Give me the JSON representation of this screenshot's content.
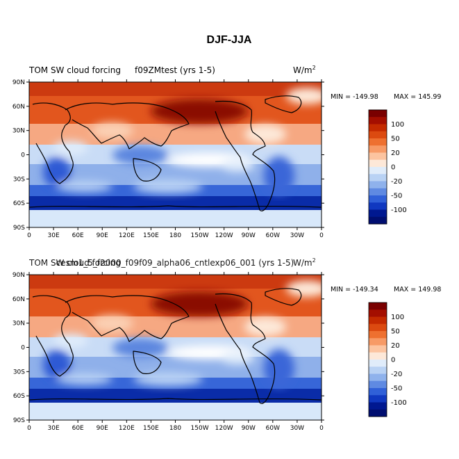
{
  "figure": {
    "title": "DJF-JJA"
  },
  "panels": [
    {
      "left_title": "TOM SW cloud forcing",
      "center_title": "f09ZMtest (yrs 1-5)",
      "units_base": "W/m",
      "units_exp": "2",
      "min_label": "MIN = -149.98",
      "max_label": "MAX = 145.99"
    },
    {
      "left_title": "TOM SW cloud forcing",
      "center_title": "cesm1_5_f2000_f09f09_alpha06_cntlexp06_001 (yrs 1-5)",
      "units_base": "W/m",
      "units_exp": "2",
      "min_label": "MIN = -149.34",
      "max_label": "MAX = 149.98"
    }
  ],
  "lat_ticks": [
    "90N",
    "60N",
    "30N",
    "0",
    "30S",
    "60S",
    "90S"
  ],
  "lon_ticks": [
    "0",
    "30E",
    "60E",
    "90E",
    "120E",
    "150E",
    "180",
    "150W",
    "120W",
    "90W",
    "60W",
    "30W",
    "0"
  ],
  "colorbar": {
    "labels": [
      "100",
      "50",
      "20",
      "0",
      "-20",
      "-50",
      "-100"
    ],
    "colors": [
      "#7a0000",
      "#a40e00",
      "#c42a00",
      "#dc4a10",
      "#ee7030",
      "#f79a66",
      "#fcc4a0",
      "#fde8d8",
      "#e0ecfa",
      "#b9d2f4",
      "#8fb2ec",
      "#5f8ae2",
      "#3060d8",
      "#1038c0",
      "#001890",
      "#000e70"
    ]
  }
}
